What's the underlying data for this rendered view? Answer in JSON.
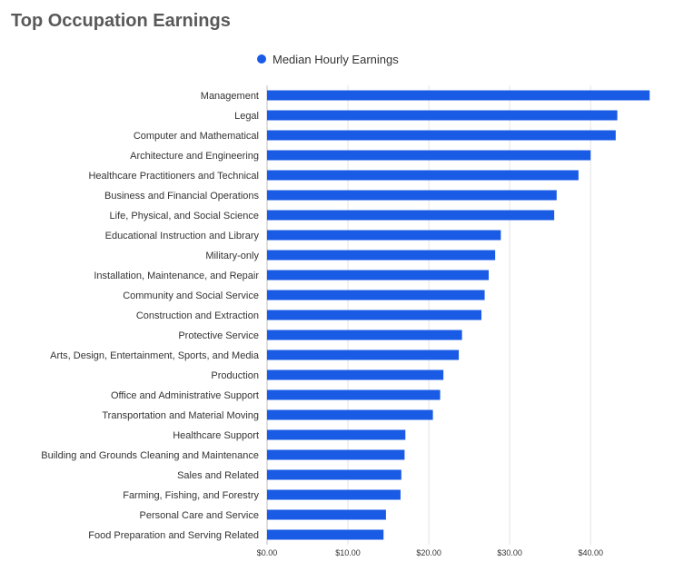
{
  "page": {
    "title": "Top Occupation Earnings"
  },
  "chart_data": {
    "type": "bar",
    "orientation": "horizontal",
    "title": "Top Occupation Earnings",
    "xlabel": "",
    "ylabel": "",
    "xlim": [
      0,
      47.5
    ],
    "x_ticks": [
      "$0.00",
      "$10.00",
      "$20.00",
      "$30.00",
      "$40.00"
    ],
    "x_tick_values": [
      0,
      10,
      20,
      30,
      40
    ],
    "grid": true,
    "legend_position": "top",
    "series": [
      {
        "name": "Median Hourly Earnings",
        "color": "#1a5be6",
        "values": [
          47.3,
          43.3,
          43.1,
          40.0,
          38.5,
          35.8,
          35.5,
          28.9,
          28.2,
          27.4,
          26.9,
          26.5,
          24.1,
          23.7,
          21.8,
          21.4,
          20.5,
          17.1,
          17.0,
          16.6,
          16.5,
          14.7,
          14.4
        ]
      }
    ],
    "categories": [
      "Management",
      "Legal",
      "Computer and Mathematical",
      "Architecture and Engineering",
      "Healthcare Practitioners and Technical",
      "Business and Financial Operations",
      "Life, Physical, and Social Science",
      "Educational Instruction and Library",
      "Military-only",
      "Installation, Maintenance, and Repair",
      "Community and Social Service",
      "Construction and Extraction",
      "Protective Service",
      "Arts, Design, Entertainment, Sports, and Media",
      "Production",
      "Office and Administrative Support",
      "Transportation and Material Moving",
      "Healthcare Support",
      "Building and Grounds Cleaning and Maintenance",
      "Sales and Related",
      "Farming, Fishing, and Forestry",
      "Personal Care and Service",
      "Food Preparation and Serving Related"
    ]
  }
}
